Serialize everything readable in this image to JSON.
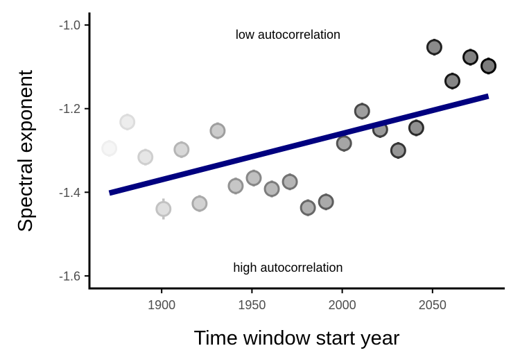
{
  "chart_data": {
    "type": "scatter",
    "xlabel": "Time window start year",
    "ylabel": "Spectral exponent",
    "xlim": [
      1860,
      2090
    ],
    "ylim": [
      -1.63,
      -0.97
    ],
    "x_ticks": [
      1900,
      1950,
      2000,
      2050
    ],
    "x_tick_labels": [
      "1900",
      "1950",
      "2000",
      "2050"
    ],
    "y_ticks": [
      -1.0,
      -1.2,
      -1.4,
      -1.6
    ],
    "y_tick_labels": [
      "-1.0",
      "-1.2",
      "-1.4",
      "-1.6"
    ],
    "grid": false,
    "points": [
      {
        "x": 1871,
        "y": -1.295,
        "err": 0.02
      },
      {
        "x": 1881,
        "y": -1.232,
        "err": 0.02
      },
      {
        "x": 1891,
        "y": -1.316,
        "err": 0.02
      },
      {
        "x": 1901,
        "y": -1.44,
        "err": 0.025
      },
      {
        "x": 1911,
        "y": -1.298,
        "err": 0.02
      },
      {
        "x": 1921,
        "y": -1.427,
        "err": 0.02
      },
      {
        "x": 1931,
        "y": -1.253,
        "err": 0.02
      },
      {
        "x": 1941,
        "y": -1.385,
        "err": 0.02
      },
      {
        "x": 1951,
        "y": -1.366,
        "err": 0.02
      },
      {
        "x": 1961,
        "y": -1.392,
        "err": 0.02
      },
      {
        "x": 1971,
        "y": -1.375,
        "err": 0.02
      },
      {
        "x": 1981,
        "y": -1.437,
        "err": 0.02
      },
      {
        "x": 1991,
        "y": -1.423,
        "err": 0.02
      },
      {
        "x": 2001,
        "y": -1.283,
        "err": 0.02
      },
      {
        "x": 2011,
        "y": -1.206,
        "err": 0.02
      },
      {
        "x": 2021,
        "y": -1.25,
        "err": 0.02
      },
      {
        "x": 2031,
        "y": -1.3,
        "err": 0.02
      },
      {
        "x": 2041,
        "y": -1.246,
        "err": 0.02
      },
      {
        "x": 2051,
        "y": -1.053,
        "err": 0.02
      },
      {
        "x": 2061,
        "y": -1.134,
        "err": 0.02
      },
      {
        "x": 2071,
        "y": -1.077,
        "err": 0.02
      },
      {
        "x": 2081,
        "y": -1.098,
        "err": 0.02
      }
    ],
    "trend_line": {
      "x": [
        1871,
        2081
      ],
      "y": [
        -1.402,
        -1.17
      ],
      "color": "#00007f"
    },
    "annotations": [
      {
        "text": "low autocorrelation",
        "x": 1970,
        "y": -1.023
      },
      {
        "text": "high autocorrelation",
        "x": 1970,
        "y": -1.58
      }
    ]
  }
}
